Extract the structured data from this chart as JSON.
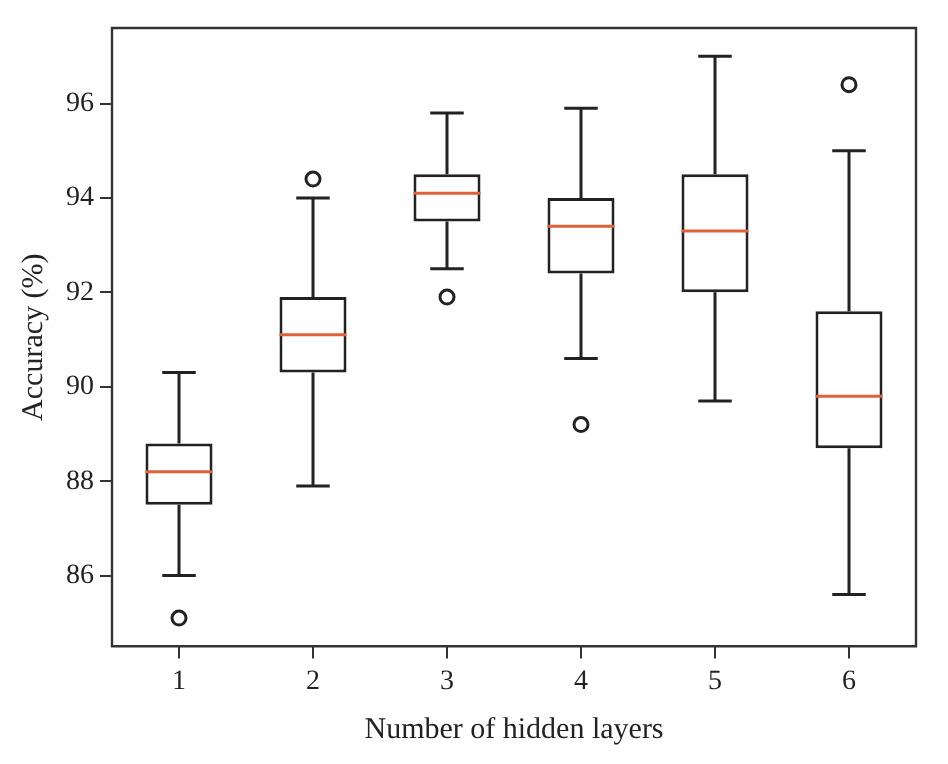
{
  "chart_data": {
    "type": "box",
    "xlabel": "Number of hidden layers",
    "ylabel": "Accuracy (%)",
    "categories": [
      "1",
      "2",
      "3",
      "4",
      "5",
      "6"
    ],
    "series": [
      {
        "color": "#222222",
        "boxes": [
          {
            "low": 86.0,
            "q1": 87.5,
            "median": 88.2,
            "q3": 88.8,
            "high": 90.3,
            "outliers": [
              85.1
            ]
          },
          {
            "low": 87.9,
            "q1": 90.3,
            "median": 91.1,
            "q3": 91.9,
            "high": 94.0,
            "outliers": [
              94.4
            ]
          },
          {
            "low": 92.5,
            "q1": 93.5,
            "median": 94.1,
            "q3": 94.5,
            "high": 95.8,
            "outliers": [
              91.9
            ]
          },
          {
            "low": 90.6,
            "q1": 92.4,
            "median": 93.4,
            "q3": 94.0,
            "high": 95.9,
            "outliers": [
              89.2
            ]
          },
          {
            "low": 89.7,
            "q1": 92.0,
            "median": 93.3,
            "q3": 94.5,
            "high": 97.0
          },
          {
            "low": 85.6,
            "q1": 88.7,
            "median": 89.8,
            "q3": 91.6,
            "high": 95.0,
            "outliers": [
              96.4
            ]
          }
        ]
      }
    ],
    "ylim": [
      84.5,
      97.6
    ],
    "yticks": [
      86,
      88,
      90,
      92,
      94,
      96
    ],
    "legend": false
  }
}
